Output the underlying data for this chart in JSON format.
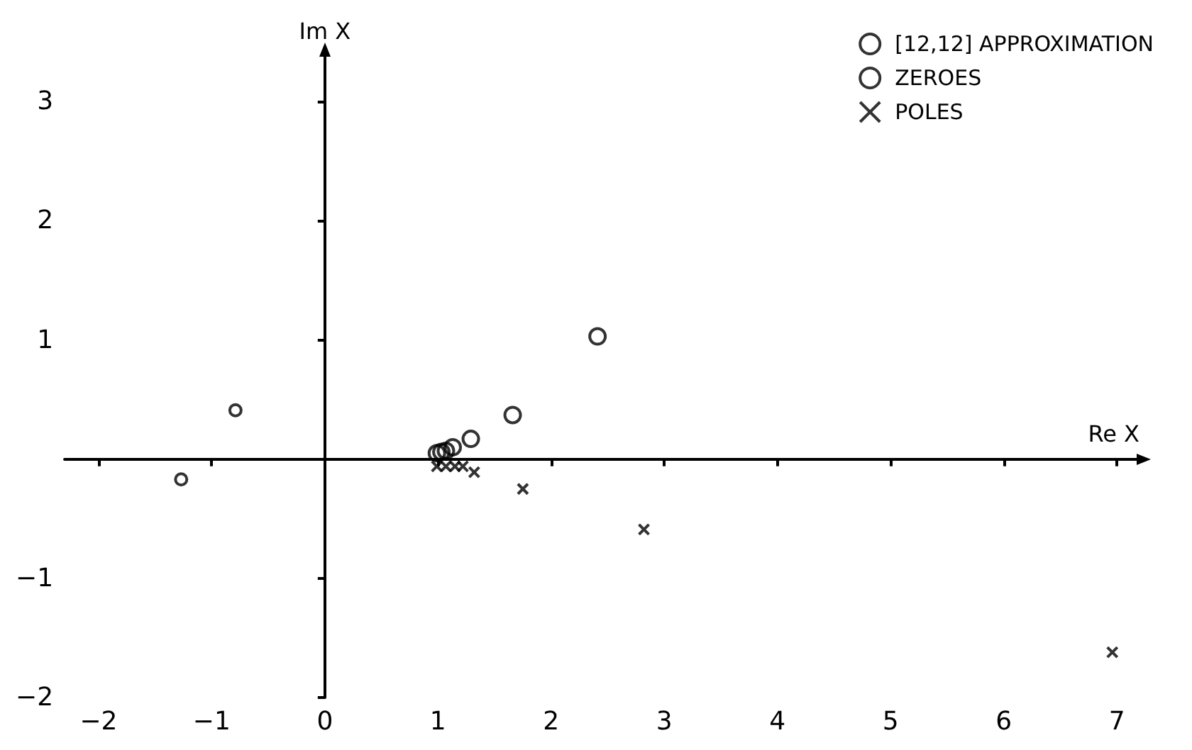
{
  "chart_data": {
    "type": "scatter",
    "xlabel": "Re X",
    "ylabel": "Im X",
    "xlim": [
      -2.3,
      7.2
    ],
    "ylim": [
      -2,
      3.4
    ],
    "xticks": [
      -2,
      -1,
      0,
      1,
      2,
      3,
      4,
      5,
      6,
      7
    ],
    "yticks": [
      -2,
      -1,
      1,
      2,
      3
    ],
    "legend": "top right",
    "series": [
      {
        "name": "[12,12] APPROXIMATION",
        "color": "#000000",
        "marker": "circle",
        "x": [
          -1.27,
          -0.79
        ],
        "values": [
          -0.17,
          0.41
        ]
      },
      {
        "name": "ZEROES",
        "color": "#000000",
        "marker": "circle",
        "x": [
          0.99,
          1.03,
          1.07,
          1.13,
          1.29,
          1.66,
          2.41
        ],
        "values": [
          0.05,
          0.06,
          0.07,
          0.1,
          0.17,
          0.37,
          1.03
        ]
      },
      {
        "name": "POLES",
        "color": "#000000",
        "marker": "cross",
        "x": [
          0.99,
          1.07,
          1.15,
          1.22,
          1.32,
          1.75,
          2.82,
          6.96
        ],
        "values": [
          -0.06,
          -0.06,
          -0.06,
          -0.06,
          -0.11,
          -0.25,
          -0.59,
          -1.62
        ]
      }
    ]
  }
}
